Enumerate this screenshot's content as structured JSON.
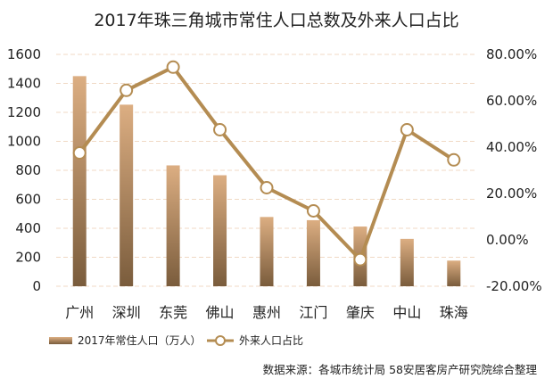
{
  "chart_data": {
    "type": "bar",
    "title": "2017年珠三角城市常住人口总数及外来人口占比",
    "categories": [
      "广州",
      "深圳",
      "东莞",
      "佛山",
      "惠州",
      "江门",
      "肇庆",
      "中山",
      "珠海"
    ],
    "series": [
      {
        "name": "2017年常住人口（万人）",
        "type": "bar",
        "axis": "left",
        "values": [
          1450,
          1253,
          834,
          766,
          478,
          456,
          412,
          327,
          177
        ]
      },
      {
        "name": "外来人口占比",
        "type": "line",
        "axis": "right",
        "values": [
          37.5,
          64.5,
          74.5,
          47.5,
          22.5,
          12.5,
          -8.5,
          47.5,
          34.5
        ]
      }
    ],
    "left_axis": {
      "ylim": [
        0,
        1600
      ],
      "ticks": [
        0,
        200,
        400,
        600,
        800,
        1000,
        1200,
        1400,
        1600
      ],
      "tick_labels": [
        "0",
        "200",
        "400",
        "600",
        "800",
        "1000",
        "1200",
        "1400",
        "1600"
      ]
    },
    "right_axis": {
      "ylim": [
        -20,
        80
      ],
      "ticks": [
        -20,
        0,
        20,
        40,
        60,
        80
      ],
      "tick_labels": [
        "-20.00%",
        "0.00%",
        "20.00%",
        "40.00%",
        "60.00%",
        "80.00%"
      ]
    },
    "grid": true,
    "legend_position": "bottom-left",
    "colors": {
      "bar_top": "#dcae82",
      "bar_bottom": "#7a5c3c",
      "line": "#b48c52",
      "marker_fill": "#ffffff",
      "grid": "#f0d9c4"
    }
  },
  "source_note": "数据来源：各城市统计局  58安居客房产研究院综合整理"
}
